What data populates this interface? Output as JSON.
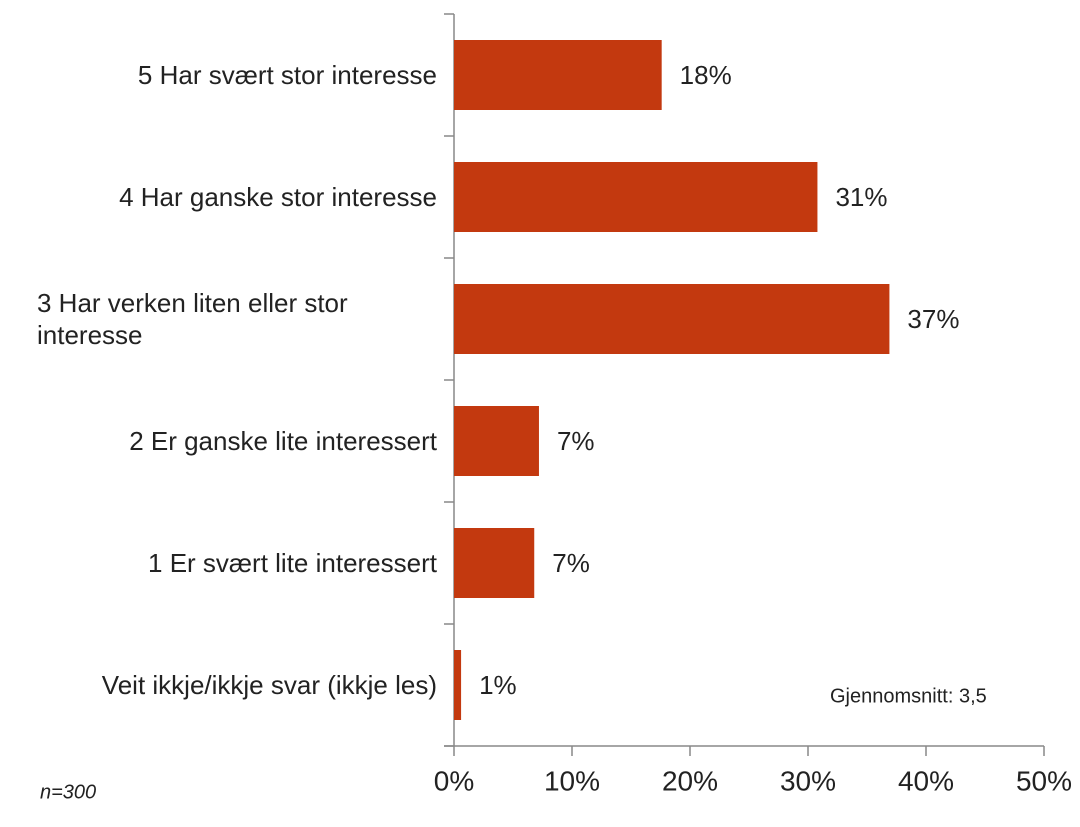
{
  "chart_data": {
    "type": "bar",
    "orientation": "horizontal",
    "categories": [
      "5 Har svært stor interesse",
      "4 Har ganske stor interesse",
      "3 Har verken liten eller stor interesse",
      "2 Er ganske lite interessert",
      "1 Er svært lite interessert",
      "Veit ikkje/ikkje svar (ikkje les)"
    ],
    "values": [
      17.6,
      30.8,
      36.9,
      7.2,
      6.8,
      0.6
    ],
    "value_labels": [
      "18%",
      "31%",
      "37%",
      "7%",
      "7%",
      "1%"
    ],
    "color": "#c3390f",
    "xlim": [
      0,
      50
    ],
    "xticks": [
      {
        "value": 0,
        "label": "0%"
      },
      {
        "value": 10,
        "label": "10%"
      },
      {
        "value": 20,
        "label": "20%"
      },
      {
        "value": 30,
        "label": "30%"
      },
      {
        "value": 40,
        "label": "40%"
      },
      {
        "value": 50,
        "label": "50%"
      }
    ],
    "grid": false,
    "annotations": [
      "Gjennomsnitt: 3,5",
      "n=300"
    ]
  }
}
